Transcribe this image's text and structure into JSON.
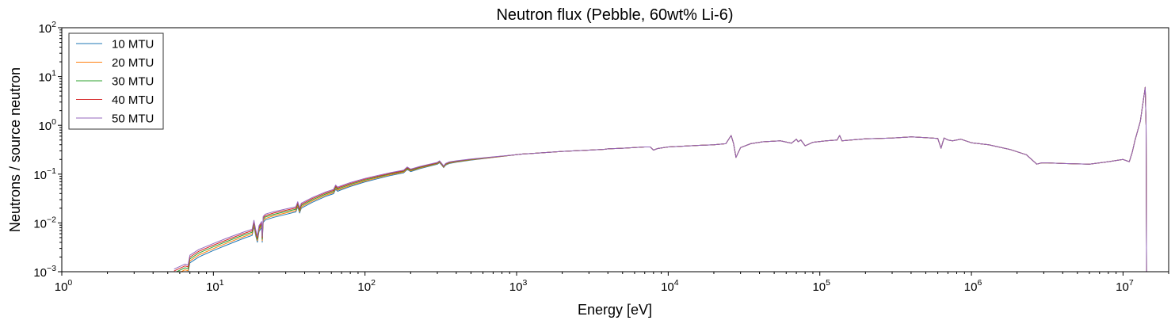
{
  "chart_data": {
    "type": "line",
    "title": "Neutron flux (Pebble, 60wt% Li-6)",
    "xlabel": "Energy [eV]",
    "ylabel": "Neutrons / source neutron",
    "xscale": "log",
    "yscale": "log",
    "xlim": [
      1,
      20000000
    ],
    "ylim": [
      0.001,
      100
    ],
    "grid": false,
    "legend_position": "upper left",
    "x_ticks": [
      {
        "base": "10",
        "exp": "0",
        "value": 1
      },
      {
        "base": "10",
        "exp": "1",
        "value": 10
      },
      {
        "base": "10",
        "exp": "2",
        "value": 100
      },
      {
        "base": "10",
        "exp": "3",
        "value": 1000
      },
      {
        "base": "10",
        "exp": "4",
        "value": 10000
      },
      {
        "base": "10",
        "exp": "5",
        "value": 100000
      },
      {
        "base": "10",
        "exp": "6",
        "value": 1000000
      },
      {
        "base": "10",
        "exp": "7",
        "value": 10000000
      }
    ],
    "y_ticks": [
      {
        "base": "10",
        "exp": "−3",
        "value": 0.001
      },
      {
        "base": "10",
        "exp": "−2",
        "value": 0.01
      },
      {
        "base": "10",
        "exp": "−1",
        "value": 0.1
      },
      {
        "base": "10",
        "exp": "0",
        "value": 1
      },
      {
        "base": "10",
        "exp": "1",
        "value": 10
      },
      {
        "base": "10",
        "exp": "2",
        "value": 100
      }
    ],
    "base_curve": {
      "x": [
        5.5,
        6.5,
        6.8,
        7.0,
        8,
        10,
        12,
        14,
        16,
        18,
        18.5,
        19.0,
        19.5,
        20,
        20.8,
        21.0,
        21.3,
        22,
        25,
        30,
        35,
        36,
        37,
        38,
        45,
        55,
        62,
        64,
        66,
        68,
        80,
        100,
        120,
        150,
        180,
        190,
        200,
        230,
        260,
        300,
        310,
        320,
        330,
        340,
        360,
        400,
        500,
        700,
        1000,
        1100,
        1200,
        1500,
        2000,
        3000,
        3800,
        4000,
        5000,
        6000,
        7000,
        7600,
        8000,
        8500,
        10000,
        15000,
        20000,
        24000,
        26000,
        27000,
        28000,
        30000,
        35000,
        42000,
        55000,
        65000,
        70000,
        72000,
        75000,
        80000,
        90000,
        110000,
        130000,
        135000,
        140000,
        160000,
        200000,
        300000,
        400000,
        500000,
        600000,
        630000,
        660000,
        700000,
        750000,
        850000,
        1000000,
        1300000,
        1800000,
        2300000,
        2700000,
        2900000,
        3200000,
        4000000,
        6000000,
        8000000,
        10000000,
        11000000,
        11500000,
        12000000,
        13000000,
        14000000,
        14200000,
        14300000
      ],
      "y": [
        0.0009,
        0.00115,
        0.0011,
        0.00175,
        0.0023,
        0.0031,
        0.0039,
        0.0047,
        0.0055,
        0.0062,
        0.0095,
        0.0062,
        0.0045,
        0.0074,
        0.009,
        0.0045,
        0.0115,
        0.0128,
        0.0145,
        0.0165,
        0.0185,
        0.0235,
        0.0175,
        0.022,
        0.029,
        0.038,
        0.043,
        0.053,
        0.048,
        0.05,
        0.06,
        0.074,
        0.085,
        0.1,
        0.112,
        0.13,
        0.118,
        0.135,
        0.148,
        0.165,
        0.178,
        0.16,
        0.14,
        0.158,
        0.17,
        0.18,
        0.198,
        0.222,
        0.25,
        0.258,
        0.262,
        0.275,
        0.292,
        0.31,
        0.322,
        0.33,
        0.34,
        0.35,
        0.36,
        0.36,
        0.31,
        0.335,
        0.36,
        0.385,
        0.4,
        0.42,
        0.62,
        0.42,
        0.22,
        0.35,
        0.42,
        0.46,
        0.48,
        0.43,
        0.52,
        0.46,
        0.5,
        0.38,
        0.45,
        0.48,
        0.5,
        0.62,
        0.48,
        0.5,
        0.53,
        0.55,
        0.58,
        0.56,
        0.54,
        0.34,
        0.55,
        0.5,
        0.48,
        0.52,
        0.44,
        0.4,
        0.32,
        0.25,
        0.16,
        0.17,
        0.17,
        0.165,
        0.16,
        0.18,
        0.2,
        0.18,
        0.28,
        0.5,
        1.2,
        6,
        1,
        0.001
      ]
    },
    "series": [
      {
        "name": "10 MTU",
        "color": "#1f77b4",
        "offset": 0.86
      },
      {
        "name": "20 MTU",
        "color": "#ff7f0e",
        "offset": 0.95
      },
      {
        "name": "30 MTU",
        "color": "#2ca02c",
        "offset": 1.05
      },
      {
        "name": "40 MTU",
        "color": "#d62728",
        "offset": 1.15
      },
      {
        "name": "50 MTU",
        "color": "#9467bd",
        "offset": 1.26
      }
    ]
  }
}
